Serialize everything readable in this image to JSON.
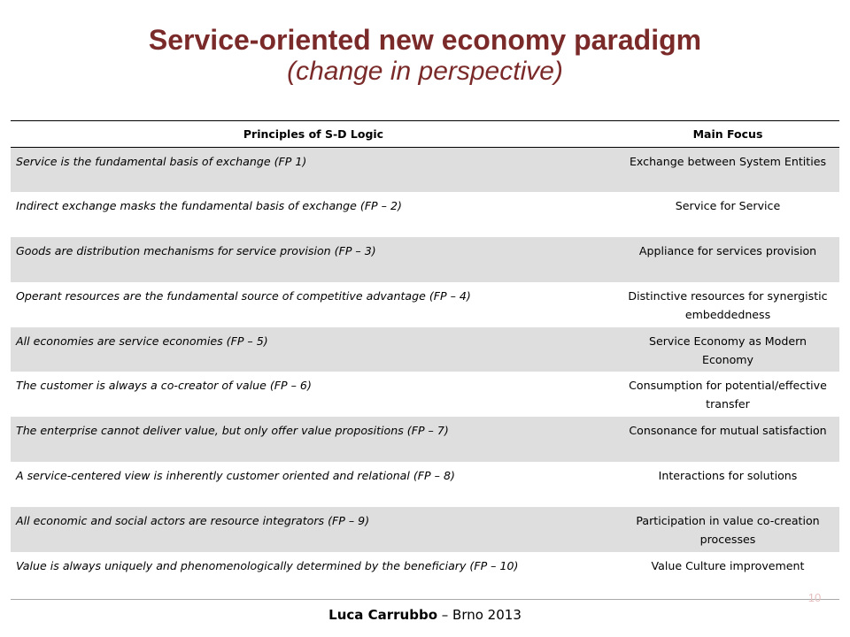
{
  "slide": {
    "title": "Service-oriented new economy paradigm",
    "subtitle": "(change in perspective)",
    "page_number": "10"
  },
  "table": {
    "headers": [
      "Principles of S-D Logic",
      "Main Focus"
    ],
    "rows": [
      {
        "principle": "Service is the fundamental basis of exchange (FP 1)",
        "focus": "Exchange between System Entities"
      },
      {
        "principle": "Indirect exchange masks the fundamental basis of exchange (FP – 2)",
        "focus": "Service for Service"
      },
      {
        "principle": "Goods are distribution mechanisms for service provision (FP – 3)",
        "focus": "Appliance for services provision"
      },
      {
        "principle": "Operant resources are the fundamental source of competitive advantage (FP – 4)",
        "focus": "Distinctive resources for synergistic embeddedness"
      },
      {
        "principle": "All economies are service economies (FP – 5)",
        "focus": "Service Economy as Modern Economy"
      },
      {
        "principle": "The customer is always a co-creator of value (FP – 6)",
        "focus": "Consumption for potential/effective transfer"
      },
      {
        "principle": "The enterprise cannot deliver value, but only offer value propositions (FP – 7)",
        "focus": "Consonance for mutual satisfaction"
      },
      {
        "principle": "A service-centered view is inherently customer oriented and relational (FP – 8)",
        "focus": "Interactions for solutions"
      },
      {
        "principle": "All economic and social actors are resource integrators (FP – 9)",
        "focus": "Participation in value co-creation processes"
      },
      {
        "principle": "Value is always uniquely and phenomenologically determined by the beneficiary (FP – 10)",
        "focus": "Value Culture improvement"
      }
    ]
  },
  "footer": {
    "author": "Luca Carrubbo",
    "rest": " – Brno 2013"
  }
}
